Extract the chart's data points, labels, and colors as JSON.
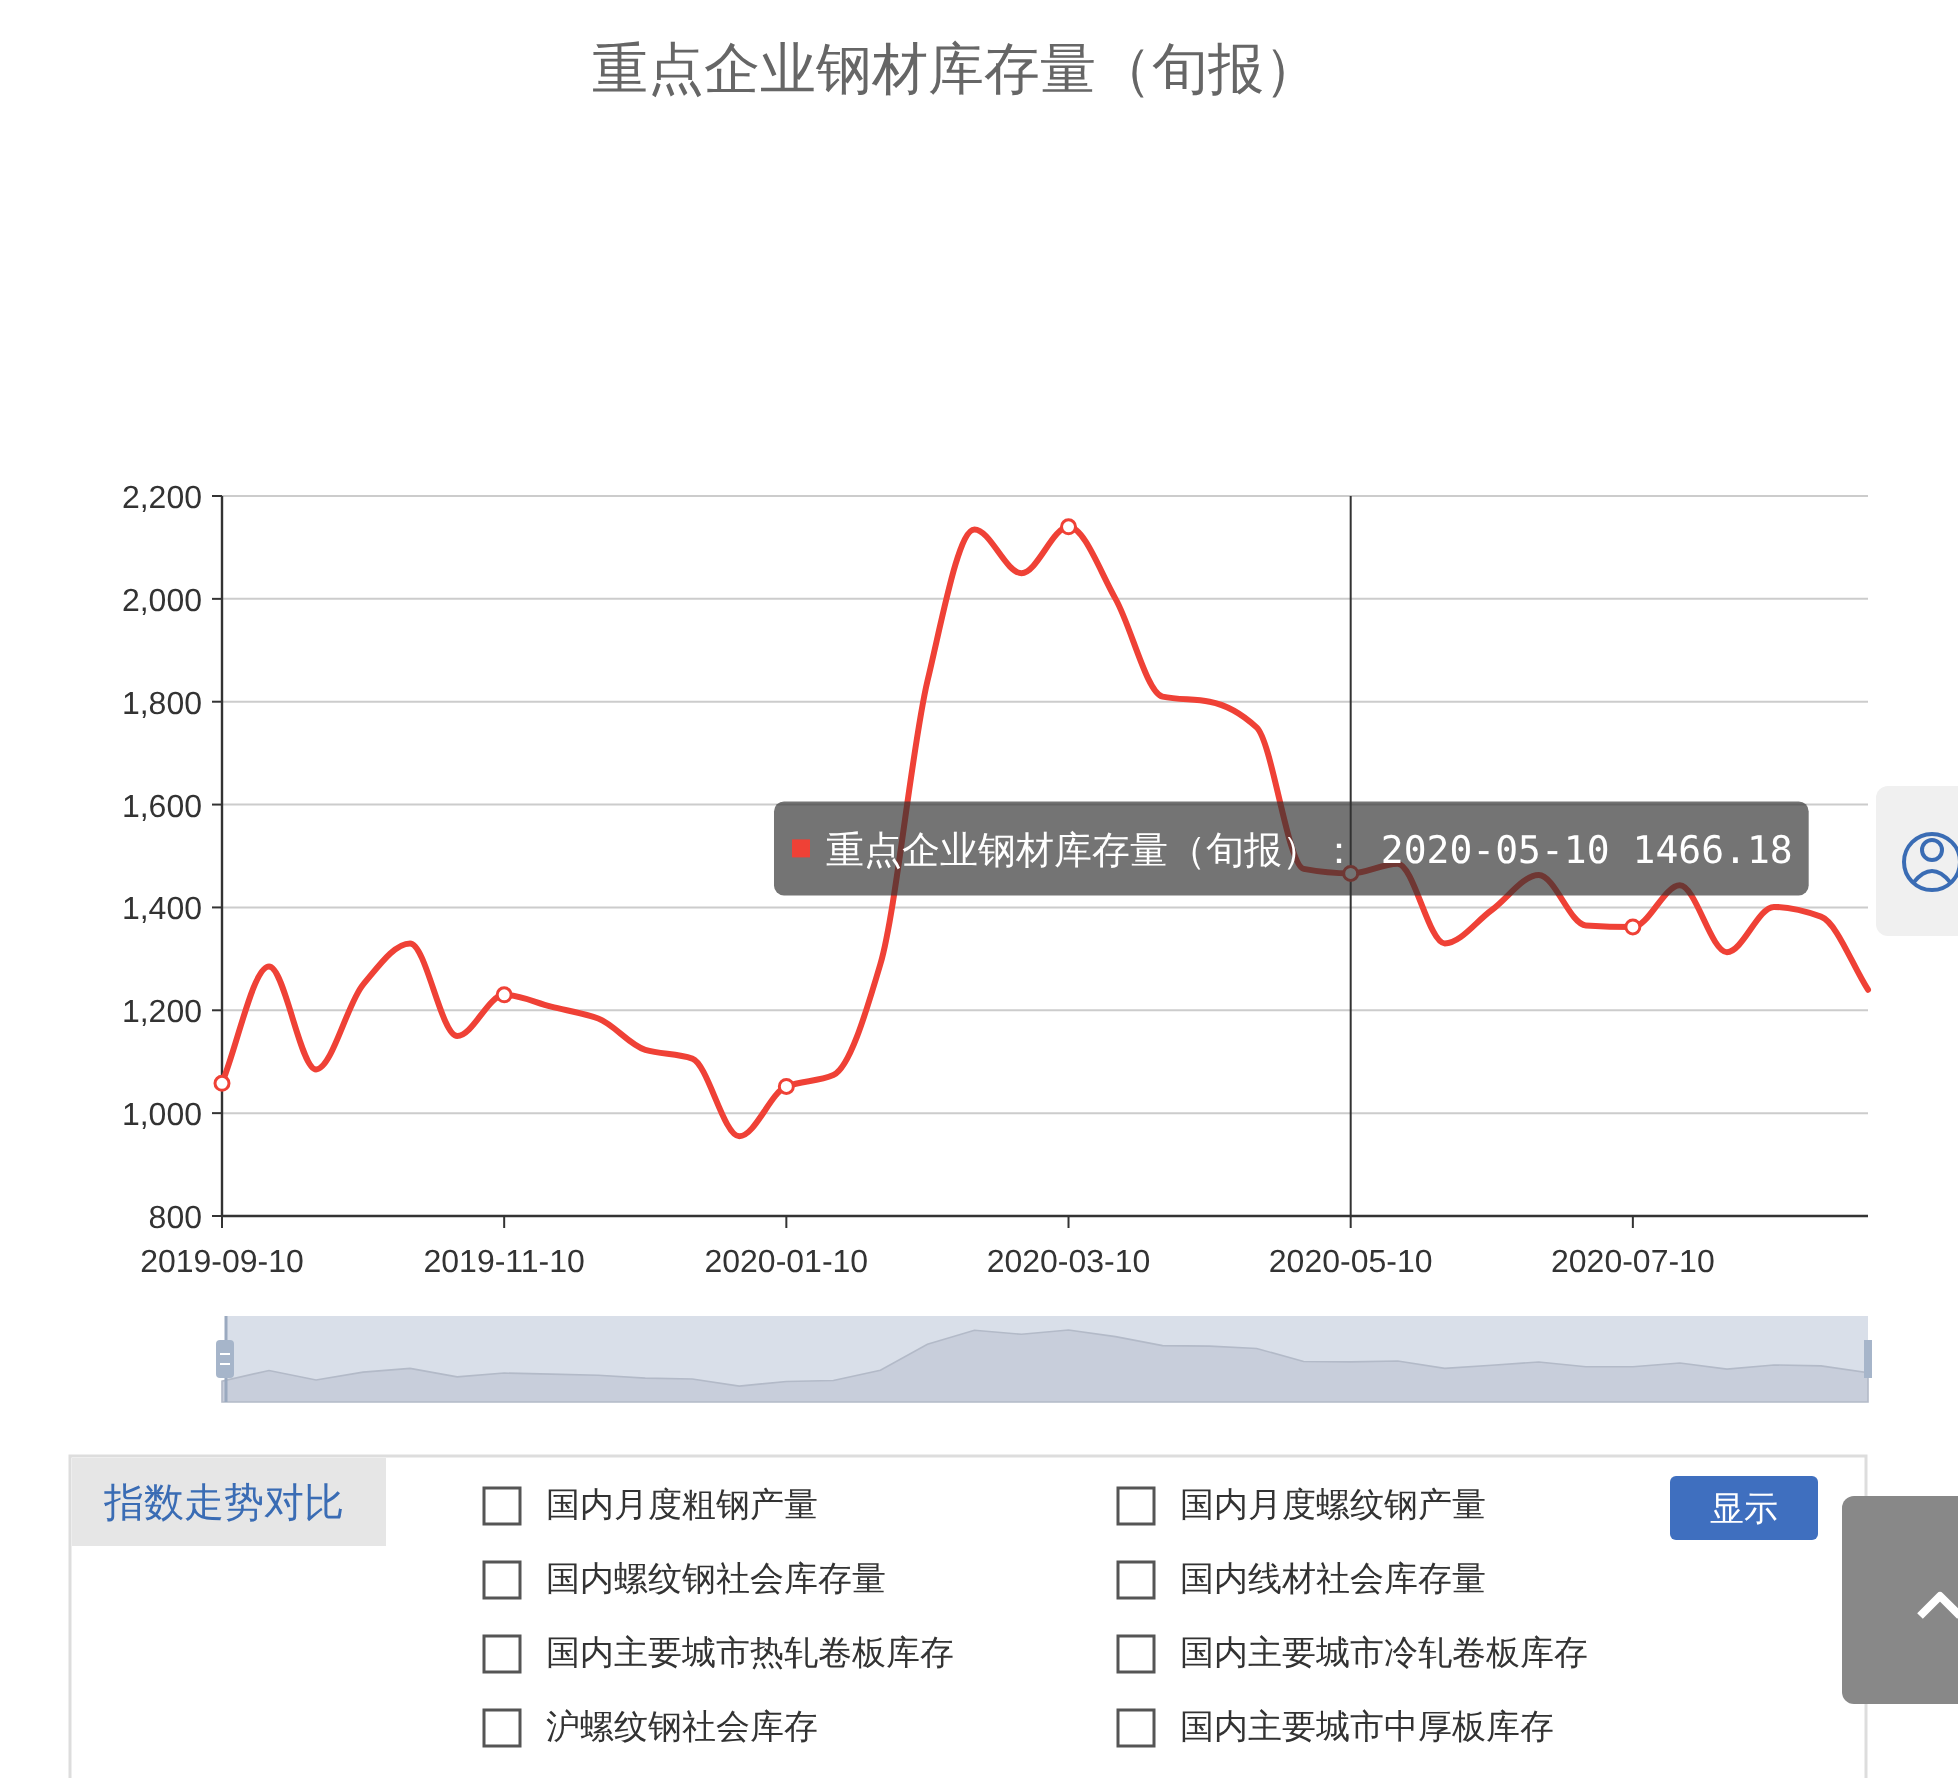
{
  "chart_data": [
    {
      "type": "line",
      "title": "重点企业钢材库存量（旬报）",
      "categories": [
        "2019-09-10",
        null,
        null,
        null,
        null,
        null,
        "2019-11-10",
        null,
        null,
        null,
        null,
        null,
        "2020-01-10",
        null,
        null,
        null,
        null,
        null,
        "2020-03-10",
        null,
        null,
        null,
        null,
        null,
        "2020-05-10",
        null,
        null,
        null,
        null,
        null,
        "2020-07-10",
        null,
        null,
        null,
        null,
        null
      ],
      "series": [
        {
          "color": "#ef4136",
          "values": [
            1058,
            1285,
            1085,
            1250,
            1330,
            1150,
            1230,
            1207,
            1184,
            1123,
            1106,
            955,
            1052,
            1074,
            1290,
            1840,
            2135,
            2050,
            2140,
            2000,
            1810,
            1800,
            1750,
            1475,
            1466.18,
            1485,
            1330,
            1395,
            1463,
            1365,
            1362,
            1443,
            1313,
            1401,
            1382,
            1240
          ]
        },
        {
          "type": "scatter",
          "marker": "circle",
          "color": "#ef4136",
          "values": [
            1058,
            null,
            null,
            null,
            null,
            null,
            1230,
            null,
            null,
            null,
            null,
            null,
            1052,
            null,
            null,
            null,
            null,
            null,
            2140,
            null,
            null,
            null,
            null,
            null,
            1466.18,
            null,
            null,
            null,
            null,
            null,
            1362,
            null,
            null,
            null,
            null,
            null
          ]
        }
      ],
      "ylim": [
        800,
        2200
      ],
      "yticks": [
        800,
        {
          "value": 1000,
          "label": "1,000"
        },
        {
          "value": 1200,
          "label": "1,200"
        },
        {
          "value": 1400,
          "label": "1,400"
        },
        {
          "value": 1600,
          "label": "1,600"
        },
        {
          "value": 1800,
          "label": "1,800"
        },
        {
          "value": 2000,
          "label": "2,000"
        },
        {
          "value": 2200,
          "label": "2,200"
        }
      ],
      "grid": "y",
      "line_style": "solid",
      "ref_lines": [
        {
          "axis": "x",
          "value": "2020-05-10",
          "color": "#333333"
        }
      ],
      "annotations": [
        {
          "text": "重点企业钢材库存量（旬报）： 2020-05-10 1466.18",
          "x": "2020-05-10",
          "y": 1466.18
        }
      ]
    },
    {
      "type": "other",
      "title": "指数走势对比",
      "annotations": [
        "国内月度粗钢产量",
        "国内月度螺纹钢产量",
        "国内螺纹钢社会库存量",
        "国内线材社会库存量",
        "国内主要城市热轧卷板库存",
        "国内主要城市冷轧卷板库存",
        "沪螺纹钢社会库存",
        "国内主要城市中厚板库存",
        "显示"
      ]
    }
  ]
}
